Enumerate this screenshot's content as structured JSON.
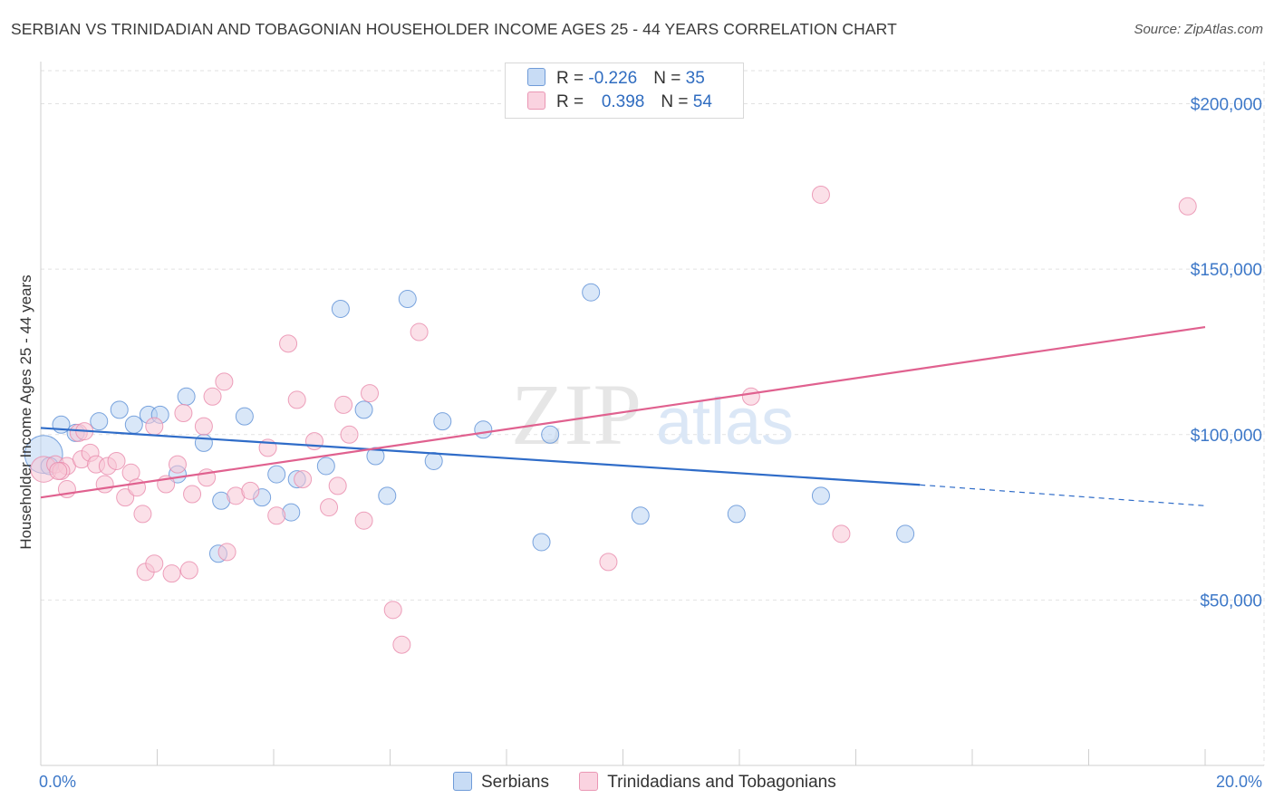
{
  "title": "SERBIAN VS TRINIDADIAN AND TOBAGONIAN HOUSEHOLDER INCOME AGES 25 - 44 YEARS CORRELATION CHART",
  "source": "Source: ZipAtlas.com",
  "watermark": {
    "zip": "ZIP",
    "atlas": "atlas"
  },
  "colors": {
    "serbian_fill": "#b9d3f2",
    "serbian_stroke": "#5b8fd6",
    "serbian_line": "#2f6cc8",
    "trini_fill": "#f7c6d6",
    "trini_stroke": "#e88aab",
    "trini_line": "#e0618f",
    "axis_label": "#3d78c8",
    "grid": "#e2e2e2"
  },
  "legend": {
    "serbian": {
      "r_label": "R = ",
      "r_value": "-0.226",
      "n_label": "N = ",
      "n_value": "35"
    },
    "trini": {
      "r_label": "R = ",
      "r_value": "0.398",
      "n_label": "N = ",
      "n_value": "54"
    }
  },
  "chart_data": {
    "type": "scatter",
    "xlabel": "",
    "ylabel": "Householder Income Ages 25 - 44 years",
    "xlim": [
      0,
      20
    ],
    "ylim": [
      0,
      210000
    ],
    "x_tick_labels": [
      "0.0%",
      "20.0%"
    ],
    "y_ticks": [
      50000,
      100000,
      150000,
      200000
    ],
    "y_tick_labels": [
      "$50,000",
      "$100,000",
      "$150,000",
      "$200,000"
    ],
    "grid": true,
    "legend_position": "bottom-center",
    "series": [
      {
        "name": "Serbians",
        "r": -0.226,
        "n": 35,
        "trend": {
          "x0": 0,
          "y0": 102000,
          "x1": 15.1,
          "y1": 84800,
          "dash_to_x": 20,
          "dash_to_y": 78500
        },
        "points": [
          [
            0.05,
            94000,
            2.2
          ],
          [
            0.35,
            103000,
            1
          ],
          [
            1.0,
            104000,
            1
          ],
          [
            0.6,
            100500,
            1
          ],
          [
            1.35,
            107500,
            1
          ],
          [
            1.6,
            103000,
            1
          ],
          [
            1.85,
            106000,
            1
          ],
          [
            2.05,
            106000,
            1
          ],
          [
            2.5,
            111500,
            1
          ],
          [
            2.35,
            88000,
            1
          ],
          [
            2.8,
            97500,
            1
          ],
          [
            3.1,
            80000,
            1
          ],
          [
            3.05,
            64000,
            1
          ],
          [
            3.5,
            105500,
            1
          ],
          [
            3.8,
            81000,
            1
          ],
          [
            4.05,
            88000,
            1
          ],
          [
            4.3,
            76500,
            1
          ],
          [
            4.4,
            86500,
            1
          ],
          [
            4.9,
            90500,
            1
          ],
          [
            5.15,
            138000,
            1
          ],
          [
            5.55,
            107500,
            1
          ],
          [
            5.75,
            93500,
            1
          ],
          [
            5.95,
            81500,
            1
          ],
          [
            6.3,
            141000,
            1
          ],
          [
            6.75,
            92000,
            1
          ],
          [
            6.9,
            104000,
            1
          ],
          [
            7.6,
            101500,
            1
          ],
          [
            8.6,
            67500,
            1
          ],
          [
            8.75,
            100000,
            1
          ],
          [
            9.45,
            143000,
            1
          ],
          [
            10.3,
            75500,
            1
          ],
          [
            11.95,
            76000,
            1
          ],
          [
            13.4,
            81500,
            1
          ],
          [
            14.85,
            70000,
            1
          ],
          [
            0.15,
            90500,
            1
          ]
        ]
      },
      {
        "name": "Trinidadians and Tobagonians",
        "r": 0.398,
        "n": 54,
        "trend": {
          "x0": 0,
          "y0": 81000,
          "x1": 20,
          "y1": 132500
        },
        "points": [
          [
            0.05,
            89500,
            1.5
          ],
          [
            0.25,
            91000,
            1
          ],
          [
            0.45,
            90500,
            1
          ],
          [
            0.35,
            89000,
            1
          ],
          [
            0.45,
            83500,
            1
          ],
          [
            0.65,
            100500,
            1
          ],
          [
            0.7,
            92500,
            1
          ],
          [
            0.75,
            101000,
            1
          ],
          [
            0.85,
            94500,
            1
          ],
          [
            0.95,
            91000,
            1
          ],
          [
            1.1,
            85000,
            1
          ],
          [
            1.15,
            90500,
            1
          ],
          [
            1.3,
            92000,
            1
          ],
          [
            1.45,
            81000,
            1
          ],
          [
            1.55,
            88500,
            1
          ],
          [
            1.65,
            84000,
            1
          ],
          [
            1.75,
            76000,
            1
          ],
          [
            1.8,
            58500,
            1
          ],
          [
            1.95,
            61000,
            1
          ],
          [
            1.95,
            102500,
            1
          ],
          [
            2.15,
            85000,
            1
          ],
          [
            2.25,
            58000,
            1
          ],
          [
            2.35,
            91000,
            1
          ],
          [
            2.45,
            106500,
            1
          ],
          [
            2.55,
            59000,
            1
          ],
          [
            2.6,
            82000,
            1
          ],
          [
            2.8,
            102500,
            1
          ],
          [
            2.85,
            87000,
            1
          ],
          [
            2.95,
            111500,
            1
          ],
          [
            3.15,
            116000,
            1
          ],
          [
            3.2,
            64500,
            1
          ],
          [
            3.35,
            81500,
            1
          ],
          [
            3.6,
            83000,
            1
          ],
          [
            3.9,
            96000,
            1
          ],
          [
            4.05,
            75500,
            1
          ],
          [
            4.25,
            127500,
            1
          ],
          [
            4.4,
            110500,
            1
          ],
          [
            4.5,
            86500,
            1
          ],
          [
            4.7,
            98000,
            1
          ],
          [
            4.95,
            78000,
            1
          ],
          [
            5.1,
            84500,
            1
          ],
          [
            5.2,
            109000,
            1
          ],
          [
            5.3,
            100000,
            1
          ],
          [
            5.55,
            74000,
            1
          ],
          [
            5.65,
            112500,
            1
          ],
          [
            6.05,
            47000,
            1
          ],
          [
            6.2,
            36500,
            1
          ],
          [
            6.5,
            131000,
            1
          ],
          [
            9.75,
            61500,
            1
          ],
          [
            12.2,
            111500,
            1
          ],
          [
            13.4,
            172500,
            1
          ],
          [
            13.75,
            70000,
            1
          ],
          [
            19.7,
            169000,
            1
          ],
          [
            0.3,
            89000,
            1
          ]
        ]
      }
    ]
  }
}
